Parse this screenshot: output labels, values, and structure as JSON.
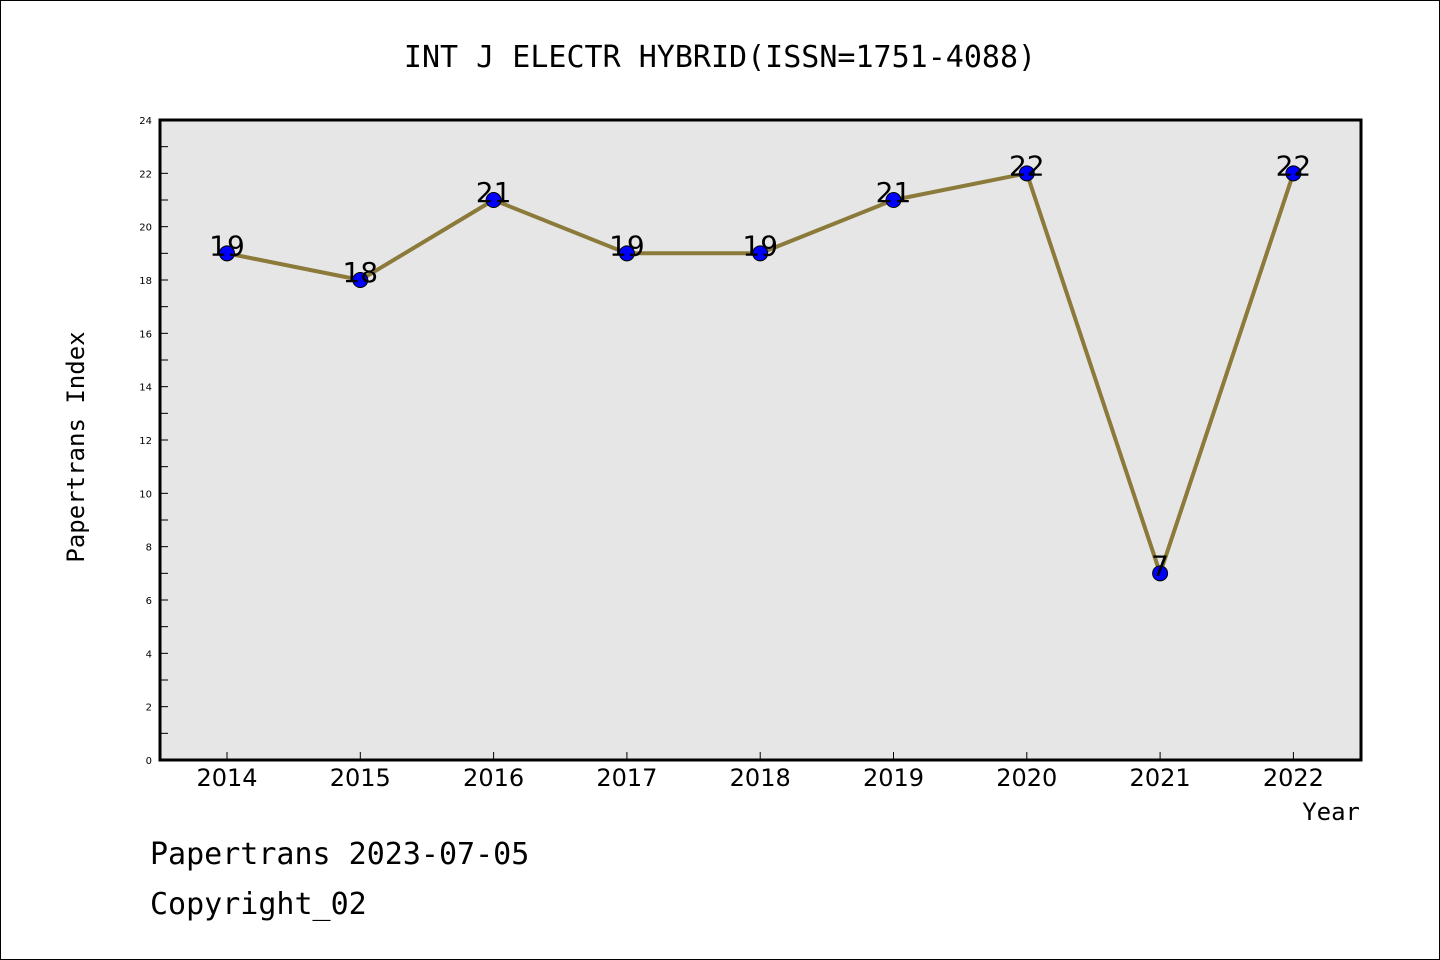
{
  "chart_data": {
    "type": "line",
    "title": "INT J ELECTR HYBRID(ISSN=1751-4088)",
    "xlabel": "Year",
    "ylabel": "Papertrans Index",
    "categories": [
      "2014",
      "2015",
      "2016",
      "2017",
      "2018",
      "2019",
      "2020",
      "2021",
      "2022"
    ],
    "values": [
      19,
      18,
      21,
      19,
      19,
      21,
      22,
      7,
      22
    ],
    "data_labels": [
      "19",
      "18",
      "21",
      "19",
      "19",
      "21",
      "22",
      "7",
      "22"
    ],
    "ylim": [
      0,
      24
    ],
    "yticks": [
      "0",
      "2",
      "4",
      "6",
      "8",
      "10",
      "12",
      "14",
      "16",
      "18",
      "20",
      "22",
      "24"
    ],
    "grid": false,
    "line_color": "#8b7a3a",
    "marker_color": "#0000ff",
    "plot_background": "#e6e6e6"
  },
  "footer": {
    "line1": "Papertrans 2023-07-05",
    "line2": "Copyright_02"
  }
}
